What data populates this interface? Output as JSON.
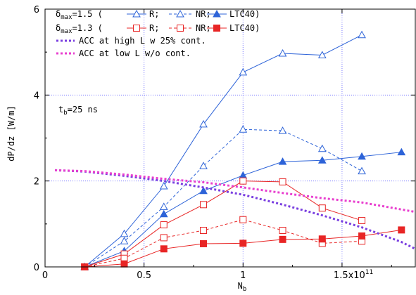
{
  "chart_data": {
    "type": "line",
    "xlabel": "N",
    "xlabel_sub": "b",
    "ylabel": "dP/dz [W/m]",
    "xlim": [
      0,
      1.87
    ],
    "ylim": [
      0,
      6
    ],
    "x_ticks": [
      {
        "v": 0,
        "label": "0"
      },
      {
        "v": 0.5,
        "label": "0.5"
      },
      {
        "v": 1,
        "label": "1"
      },
      {
        "v": 1.5,
        "label": "1.5x10"
      }
    ],
    "x_tick_exp": "11",
    "y_ticks": [
      {
        "v": 0,
        "label": "0"
      },
      {
        "v": 2,
        "label": "2"
      },
      {
        "v": 4,
        "label": "4"
      },
      {
        "v": 6,
        "label": "6"
      }
    ],
    "grid_x": [
      0.5,
      1,
      1.5
    ],
    "grid_y": [
      2,
      4
    ],
    "annotation": {
      "text": "t",
      "sub": "b",
      "rest": "=25 ns"
    },
    "legend": {
      "row1": {
        "prefix": "δ",
        "sub": "max",
        "rest": "=1.5 (",
        "labels": [
          "R;",
          "NR;",
          "LTC40)"
        ]
      },
      "row2": {
        "prefix": "δ",
        "sub": "max",
        "rest": "=1.3 (",
        "labels": [
          "R;",
          "NR;",
          "LTC40)"
        ]
      },
      "row3": "ACC at high L w 25% cont.",
      "row4": "ACC at low L w/o cont."
    },
    "colors": {
      "blue": "#2d63d8",
      "red": "#e82525",
      "purple": "#7a3fe0",
      "magenta": "#e83fcf",
      "grid": "#7a7aff"
    },
    "series": [
      {
        "key": "b15R",
        "color": "#2d63d8",
        "dash": "",
        "marker": "tri_open",
        "x": [
          0.2,
          0.4,
          0.6,
          0.8,
          1.0,
          1.2,
          1.4,
          1.6
        ],
        "y": [
          0.0,
          0.77,
          1.88,
          3.32,
          4.53,
          4.97,
          4.93,
          5.4
        ]
      },
      {
        "key": "b15NR",
        "color": "#2d63d8",
        "dash": "4,3",
        "marker": "tri_open",
        "x": [
          0.2,
          0.4,
          0.6,
          0.8,
          1.0,
          1.2,
          1.4,
          1.6
        ],
        "y": [
          0.0,
          0.6,
          1.4,
          2.35,
          3.2,
          3.17,
          2.75,
          2.23
        ]
      },
      {
        "key": "b15L",
        "color": "#2d63d8",
        "dash": "",
        "marker": "tri_filled",
        "x": [
          0.2,
          0.4,
          0.6,
          0.8,
          1.0,
          1.2,
          1.4,
          1.6,
          1.8
        ],
        "y": [
          0.0,
          0.37,
          1.23,
          1.77,
          2.13,
          2.45,
          2.48,
          2.57,
          2.67
        ]
      },
      {
        "key": "b13R",
        "color": "#e82525",
        "dash": "",
        "marker": "sq_open",
        "x": [
          0.2,
          0.4,
          0.6,
          0.8,
          1.0,
          1.2,
          1.4,
          1.6
        ],
        "y": [
          0.0,
          0.3,
          0.98,
          1.45,
          2.0,
          1.98,
          1.37,
          1.08
        ]
      },
      {
        "key": "b13NR",
        "color": "#e82525",
        "dash": "4,3",
        "marker": "sq_open",
        "x": [
          0.2,
          0.4,
          0.6,
          0.8,
          1.0,
          1.2,
          1.4,
          1.6
        ],
        "y": [
          0.0,
          0.2,
          0.68,
          0.85,
          1.1,
          0.85,
          0.55,
          0.6
        ]
      },
      {
        "key": "b13L",
        "color": "#e82525",
        "dash": "",
        "marker": "sq_filled",
        "x": [
          0.2,
          0.4,
          0.6,
          0.8,
          1.0,
          1.2,
          1.4,
          1.6,
          1.8
        ],
        "y": [
          0.0,
          0.07,
          0.42,
          0.54,
          0.55,
          0.64,
          0.65,
          0.72,
          0.86
        ]
      },
      {
        "key": "accHigh",
        "color": "#7a3fe0",
        "dash": "3,3",
        "marker": "none",
        "width": 3,
        "x": [
          0.05,
          0.2,
          0.4,
          0.6,
          0.8,
          1.0,
          1.2,
          1.4,
          1.6,
          1.8,
          1.87
        ],
        "y": [
          2.25,
          2.22,
          2.12,
          2.0,
          1.85,
          1.68,
          1.45,
          1.2,
          0.92,
          0.58,
          0.42
        ]
      },
      {
        "key": "accLow",
        "color": "#e83fcf",
        "dash": "3,3",
        "marker": "none",
        "width": 3,
        "x": [
          0.05,
          0.2,
          0.4,
          0.6,
          0.8,
          1.0,
          1.2,
          1.4,
          1.6,
          1.87
        ],
        "y": [
          2.25,
          2.23,
          2.15,
          2.05,
          1.97,
          1.85,
          1.72,
          1.6,
          1.5,
          1.28
        ]
      }
    ]
  }
}
